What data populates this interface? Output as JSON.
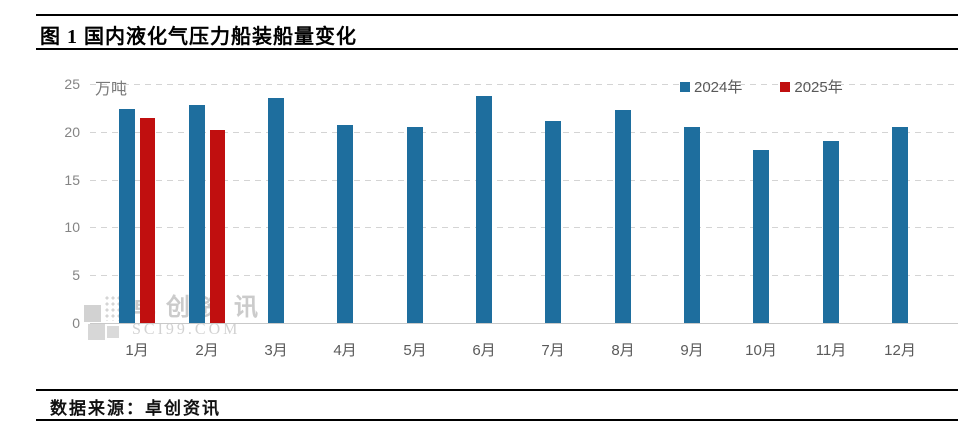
{
  "title": "图 1 国内液化气压力船装船量变化",
  "footer": {
    "source_label": "数据来源：卓创资讯"
  },
  "watermark": {
    "name_cn": "卓创资讯",
    "name_en": "SCI99.COM"
  },
  "colors": {
    "bar_2024": "#1e6e9e",
    "bar_2025": "#c00f0f",
    "grid": "#d4d4d4",
    "axis_text": "#848484",
    "label_text": "#5a5a5a"
  },
  "chart_data": {
    "type": "bar",
    "title": "图 1 国内液化气压力船装船量变化",
    "unit_label": "万吨",
    "categories": [
      "1月",
      "2月",
      "3月",
      "4月",
      "5月",
      "6月",
      "7月",
      "8月",
      "9月",
      "10月",
      "11月",
      "12月"
    ],
    "series": [
      {
        "name": "2024年",
        "color": "#1e6e9e",
        "values": [
          22.4,
          22.8,
          23.5,
          20.7,
          20.5,
          23.7,
          21.1,
          22.3,
          20.5,
          18.1,
          19.0,
          20.5
        ]
      },
      {
        "name": "2025年",
        "color": "#c00f0f",
        "values": [
          21.4,
          20.2,
          null,
          null,
          null,
          null,
          null,
          null,
          null,
          null,
          null,
          null
        ]
      }
    ],
    "ylim": [
      0,
      25
    ],
    "yticks": [
      0,
      5,
      10,
      15,
      20,
      25
    ],
    "grid": "horizontal-dashed",
    "legend_position": "top-right",
    "source": "数据来源：卓创资讯"
  }
}
